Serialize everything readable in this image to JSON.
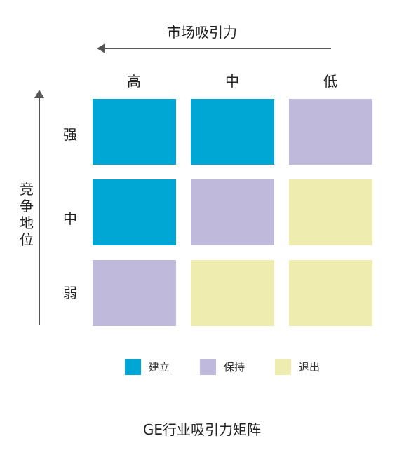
{
  "x_axis": {
    "label": "市场吸引力",
    "columns": [
      "高",
      "中",
      "低"
    ]
  },
  "y_axis": {
    "label": "竞争地位",
    "rows": [
      "强",
      "中",
      "弱"
    ]
  },
  "colors": {
    "build": "#00a6d4",
    "hold": "#bfbadc",
    "exit": "#efecb0",
    "axis": "#555555"
  },
  "grid": [
    [
      "build",
      "build",
      "hold"
    ],
    [
      "build",
      "hold",
      "exit"
    ],
    [
      "hold",
      "exit",
      "exit"
    ]
  ],
  "legend": [
    {
      "key": "build",
      "label": "建立"
    },
    {
      "key": "hold",
      "label": "保持"
    },
    {
      "key": "exit",
      "label": "退出"
    }
  ],
  "caption": "GE行业吸引力矩阵"
}
